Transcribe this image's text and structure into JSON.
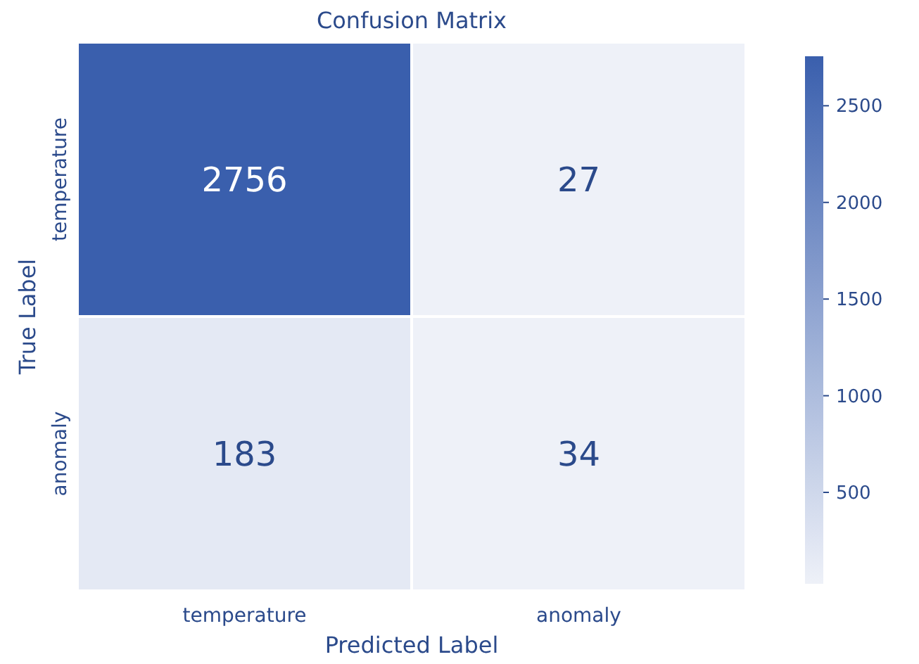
{
  "chart_data": {
    "type": "heatmap",
    "title": "Confusion Matrix",
    "xlabel": "Predicted Label",
    "ylabel": "True Label",
    "categories": [
      "temperature",
      "anomaly"
    ],
    "y_categories": [
      "temperature",
      "anomaly"
    ],
    "cells": [
      [
        2756,
        27
      ],
      [
        183,
        34
      ]
    ],
    "clim": [
      27,
      2756
    ],
    "cticks": [
      500,
      1000,
      1500,
      2000,
      2500
    ],
    "data_labels": true
  }
}
